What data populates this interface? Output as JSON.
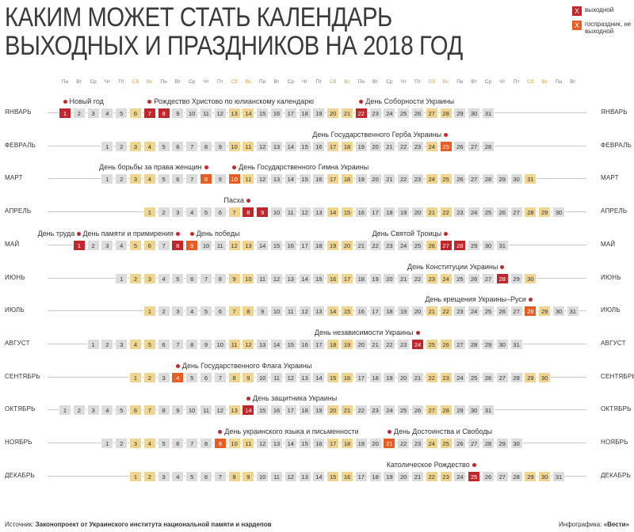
{
  "title": {
    "line1": "КАКИМ МОЖЕТ СТАТЬ КАЛЕНДАРЬ",
    "line2": "ВЫХОДНЫХ И ПРАЗДНИКОВ НА 2018 ГОД"
  },
  "legend": {
    "items": [
      {
        "mark": "X",
        "label": "выходной",
        "color": "#c0272d"
      },
      {
        "mark": "X",
        "label": "госпраздник, не выходной",
        "color": "#e85d22"
      }
    ]
  },
  "weekdays": [
    "Пн",
    "Вт",
    "Ср",
    "Чт",
    "Пт",
    "Сб",
    "Вс",
    "Пн",
    "Вт",
    "Ср",
    "Чт",
    "Пт",
    "Сб",
    "Вс",
    "Пн",
    "Вт",
    "Ср",
    "Чт",
    "Пт",
    "Сб",
    "Вс",
    "Пн",
    "Вт",
    "Ср",
    "Чт",
    "Пт",
    "Сб",
    "Вс",
    "Пн",
    "Вт",
    "Ср",
    "Чт",
    "Пт",
    "Сб",
    "Вс",
    "Пн",
    "Вт"
  ],
  "months": [
    {
      "name": "ЯНВАРЬ",
      "start_col": 0,
      "days": 31,
      "off": [
        1,
        7,
        8,
        22
      ],
      "holiday": [],
      "events": [
        {
          "text": "Новый год",
          "day": 1,
          "side": "right"
        },
        {
          "text": "Рождество Христово по юлианскому календарю",
          "day": 7,
          "side": "right"
        },
        {
          "text": "День Соборности Украины",
          "day": 22,
          "side": "right"
        }
      ]
    },
    {
      "name": "ФЕВРАЛЬ",
      "start_col": 3,
      "days": 28,
      "off": [],
      "holiday": [
        25
      ],
      "events": [
        {
          "text": "День Государственного Герба Украины",
          "day": 25,
          "side": "left"
        }
      ]
    },
    {
      "name": "МАРТ",
      "start_col": 3,
      "days": 31,
      "off": [],
      "holiday": [
        8,
        10
      ],
      "events": [
        {
          "text": "День борьбы за права женщин",
          "day": 8,
          "side": "left"
        },
        {
          "text": "День Государственного Гимна Украины",
          "day": 10,
          "side": "right"
        }
      ]
    },
    {
      "name": "АПРЕЛЬ",
      "start_col": 6,
      "days": 30,
      "off": [
        8,
        9
      ],
      "holiday": [],
      "events": [
        {
          "text": "Пасха",
          "day": 8,
          "side": "left"
        }
      ]
    },
    {
      "name": "МАЙ",
      "start_col": 1,
      "days": 31,
      "off": [
        1,
        8,
        27,
        28
      ],
      "holiday": [
        9
      ],
      "events": [
        {
          "text": "День труда",
          "day": 1,
          "side": "left"
        },
        {
          "text": "День памяти и примирения",
          "day": 8,
          "side": "left"
        },
        {
          "text": "День победы",
          "day": 9,
          "side": "right"
        },
        {
          "text": "День Святой Троицы",
          "day": 27,
          "side": "left"
        }
      ]
    },
    {
      "name": "ИЮНЬ",
      "start_col": 4,
      "days": 30,
      "off": [
        28
      ],
      "holiday": [],
      "events": [
        {
          "text": "День Конституции Украины",
          "day": 28,
          "side": "left"
        }
      ]
    },
    {
      "name": "ИЮЛЬ",
      "start_col": 6,
      "days": 31,
      "off": [],
      "holiday": [
        28
      ],
      "events": [
        {
          "text": "День крещения Украины–Руси",
          "day": 28,
          "side": "left"
        }
      ]
    },
    {
      "name": "АВГУСТ",
      "start_col": 2,
      "days": 31,
      "off": [
        24
      ],
      "holiday": [],
      "events": [
        {
          "text": "День независимости Украины",
          "day": 24,
          "side": "left"
        }
      ]
    },
    {
      "name": "СЕНТЯБРЬ",
      "start_col": 5,
      "days": 30,
      "off": [],
      "holiday": [
        4
      ],
      "events": [
        {
          "text": "День Государственного Флага Украины",
          "day": 4,
          "side": "right"
        }
      ]
    },
    {
      "name": "ОКТЯБРЬ",
      "start_col": 0,
      "days": 31,
      "off": [
        14
      ],
      "holiday": [],
      "events": [
        {
          "text": "День защитника Украины",
          "day": 14,
          "side": "right"
        }
      ]
    },
    {
      "name": "НОЯБРЬ",
      "start_col": 3,
      "days": 30,
      "off": [],
      "holiday": [
        9,
        21
      ],
      "events": [
        {
          "text": "День украинского языка и письменности",
          "day": 9,
          "side": "right"
        },
        {
          "text": "День Достоинства и Свободы",
          "day": 21,
          "side": "right"
        }
      ]
    },
    {
      "name": "ДЕКАБРЬ",
      "start_col": 5,
      "days": 31,
      "off": [
        25
      ],
      "holiday": [],
      "events": [
        {
          "text": "Католическое Рождество",
          "day": 25,
          "side": "left"
        }
      ]
    }
  ],
  "footer": {
    "source_label": "Источник:",
    "source_text": "Законопроект от Украинского института национальной памяти и нардепов",
    "credit_label": "Инфографика:",
    "credit_text": "«Вести»"
  }
}
